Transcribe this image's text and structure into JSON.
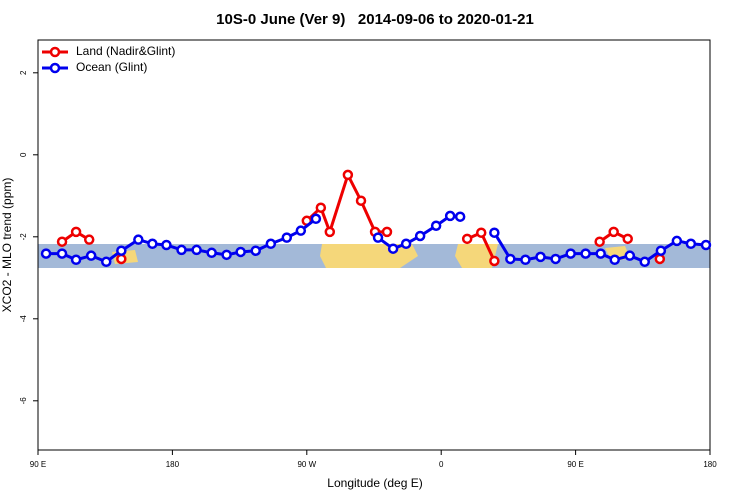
{
  "chart_data": {
    "type": "line",
    "title": "10S-0 June (Ver 9)   2014-09-06 to 2020-01-21",
    "x_label": "Longitude (deg E)",
    "y_label": "XCO2 - MLO trend (ppm)",
    "xlim": [
      90,
      540
    ],
    "ylim": [
      -7.2,
      2.8
    ],
    "xticks": [
      {
        "value": 90,
        "label": "90 E"
      },
      180,
      {
        "value": 270,
        "label": "90 W"
      },
      {
        "value": 360,
        "label": "0"
      },
      {
        "value": 450,
        "label": "90 E"
      },
      {
        "value": 540,
        "label": "180"
      }
    ],
    "yticks": [
      2,
      0,
      -2,
      -4,
      -6
    ],
    "legend": "top-left",
    "series": [
      {
        "name": "Land (Nadir&Glint)",
        "color": "#ee0000",
        "x": [
          106.1,
          115.5,
          124.3,
          null,
          145.8,
          null,
          270.0,
          279.4,
          285.4,
          297.5,
          306.3,
          315.7,
          323.7,
          null,
          377.4,
          386.8,
          395.6,
          null,
          466.1,
          475.5,
          484.9,
          null,
          506.4
        ],
        "values": [
          -2.12,
          -1.88,
          -2.07,
          null,
          -2.54,
          null,
          -1.61,
          -1.29,
          -1.88,
          -0.49,
          -1.12,
          -1.88,
          -1.88,
          null,
          -2.05,
          -1.9,
          -2.59,
          null,
          -2.12,
          -1.88,
          -2.05,
          null,
          -2.54
        ]
      },
      {
        "name": "Ocean (Glint)",
        "color": "#0000ee",
        "x": [
          95.4,
          106.1,
          115.5,
          125.6,
          135.7,
          145.8,
          157.2,
          166.6,
          176.0,
          186.1,
          196.2,
          206.3,
          216.3,
          225.7,
          235.8,
          245.9,
          256.6,
          266.0,
          276.1,
          null,
          317.7,
          327.8,
          336.5,
          345.9,
          356.6,
          366.0,
          372.7,
          null,
          395.6,
          406.3,
          416.4,
          426.5,
          436.6,
          446.7,
          456.7,
          466.8,
          476.2,
          486.3,
          496.3,
          507.1,
          517.8,
          527.2,
          537.3
        ],
        "values": [
          -2.41,
          -2.41,
          -2.56,
          -2.46,
          -2.61,
          -2.34,
          -2.07,
          -2.17,
          -2.2,
          -2.32,
          -2.32,
          -2.39,
          -2.44,
          -2.37,
          -2.34,
          -2.17,
          -2.02,
          -1.85,
          -1.56,
          null,
          -2.02,
          -2.29,
          -2.17,
          -1.98,
          -1.73,
          -1.49,
          -1.51,
          null,
          -1.9,
          -2.54,
          -2.56,
          -2.49,
          -2.54,
          -2.41,
          -2.41,
          -2.41,
          -2.56,
          -2.46,
          -2.61,
          -2.34,
          -2.1,
          -2.17,
          -2.2
        ]
      }
    ]
  }
}
